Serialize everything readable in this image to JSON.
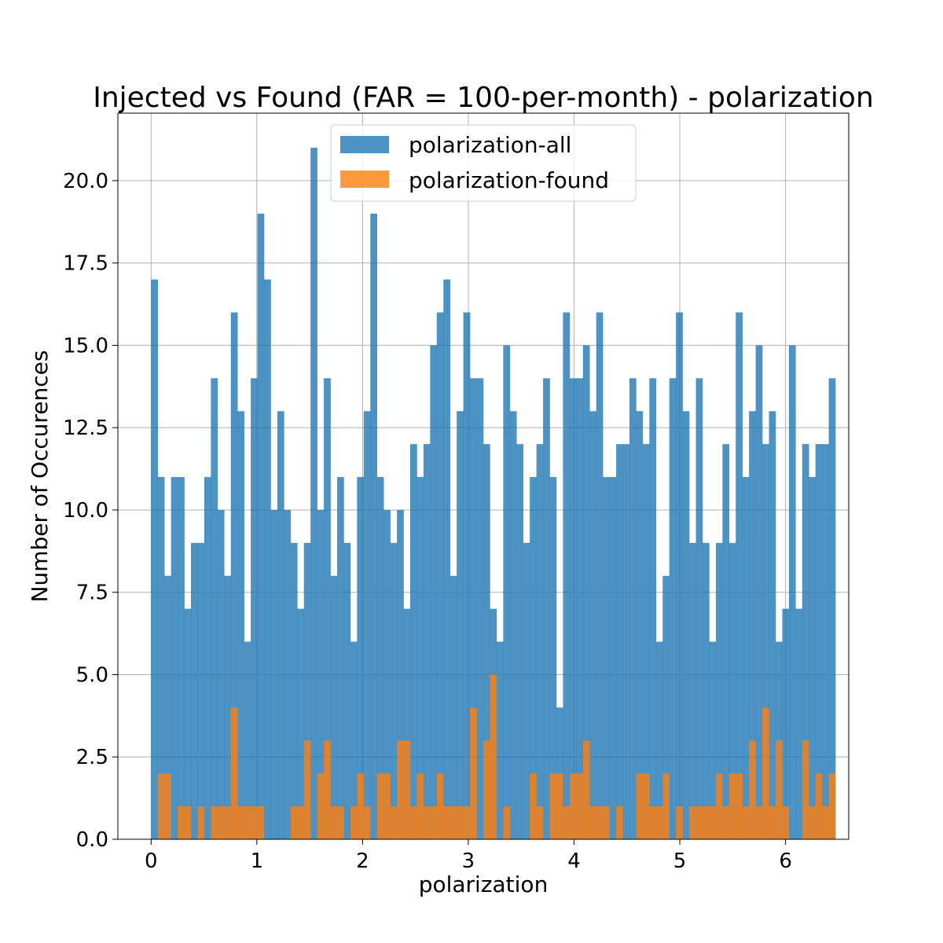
{
  "chart_data": {
    "type": "bar",
    "title": "Injected vs Found (FAR = 100-per-month) - polarization",
    "xlabel": "polarization",
    "ylabel": "Number of Occurences",
    "xlim": [
      -0.3142,
      6.5973
    ],
    "ylim": [
      0,
      22.05
    ],
    "bin_start": 0,
    "bin_width": 0.06283,
    "grid": true,
    "legend_position": "top-center",
    "x_ticks": [
      0,
      1,
      2,
      3,
      4,
      5,
      6
    ],
    "x_tick_labels": [
      "0",
      "1",
      "2",
      "3",
      "4",
      "5",
      "6"
    ],
    "y_ticks": [
      0,
      2.5,
      5,
      7.5,
      10,
      12.5,
      15,
      17.5,
      20
    ],
    "y_tick_labels": [
      "0.0",
      "2.5",
      "5.0",
      "7.5",
      "10.0",
      "12.5",
      "15.0",
      "17.5",
      "20.0"
    ],
    "series": [
      {
        "name": "polarization-all",
        "color": "#1f77b4",
        "opacity": 0.8,
        "values": [
          17,
          11,
          8,
          11,
          11,
          7,
          9,
          9,
          11,
          14,
          10,
          8,
          16,
          13,
          6,
          14,
          19,
          17,
          10,
          13,
          10,
          9,
          7,
          9,
          21,
          10,
          14,
          8,
          11,
          9,
          6,
          11,
          13,
          19,
          11,
          10,
          9,
          10,
          7,
          12,
          11,
          12,
          15,
          16,
          17,
          8,
          13,
          16,
          14,
          14,
          12,
          7,
          6,
          15,
          13,
          12,
          9,
          11,
          12,
          14,
          11,
          4,
          16,
          14,
          14,
          15,
          13,
          16,
          11,
          11,
          12,
          12,
          14,
          13,
          12,
          14,
          6,
          8,
          14,
          16,
          13,
          9,
          14,
          9,
          6,
          9,
          12,
          9,
          16,
          11,
          13,
          15,
          12,
          13,
          6,
          7,
          15,
          7,
          12,
          11,
          12,
          12,
          14
        ]
      },
      {
        "name": "polarization-found",
        "color": "#ff7f0e",
        "opacity": 0.8,
        "values": [
          0,
          2,
          2,
          0,
          1,
          1,
          0,
          1,
          0,
          1,
          1,
          1,
          4,
          1,
          1,
          1,
          1,
          0,
          0,
          0,
          0,
          1,
          1,
          3,
          0,
          2,
          3,
          1,
          1,
          0,
          1,
          2,
          1,
          0,
          2,
          2,
          1,
          3,
          3,
          1,
          2,
          1,
          1,
          2,
          1,
          1,
          1,
          1,
          4,
          0,
          3,
          5,
          0,
          1,
          0,
          0,
          0,
          2,
          1,
          0,
          2,
          2,
          1,
          2,
          2,
          3,
          1,
          1,
          1,
          0,
          1,
          0,
          0,
          2,
          2,
          1,
          1,
          2,
          0,
          1,
          0,
          1,
          1,
          1,
          1,
          2,
          1,
          2,
          2,
          1,
          3,
          1,
          4,
          1,
          3,
          1,
          0,
          0,
          3,
          1,
          2,
          1,
          2
        ]
      }
    ]
  }
}
